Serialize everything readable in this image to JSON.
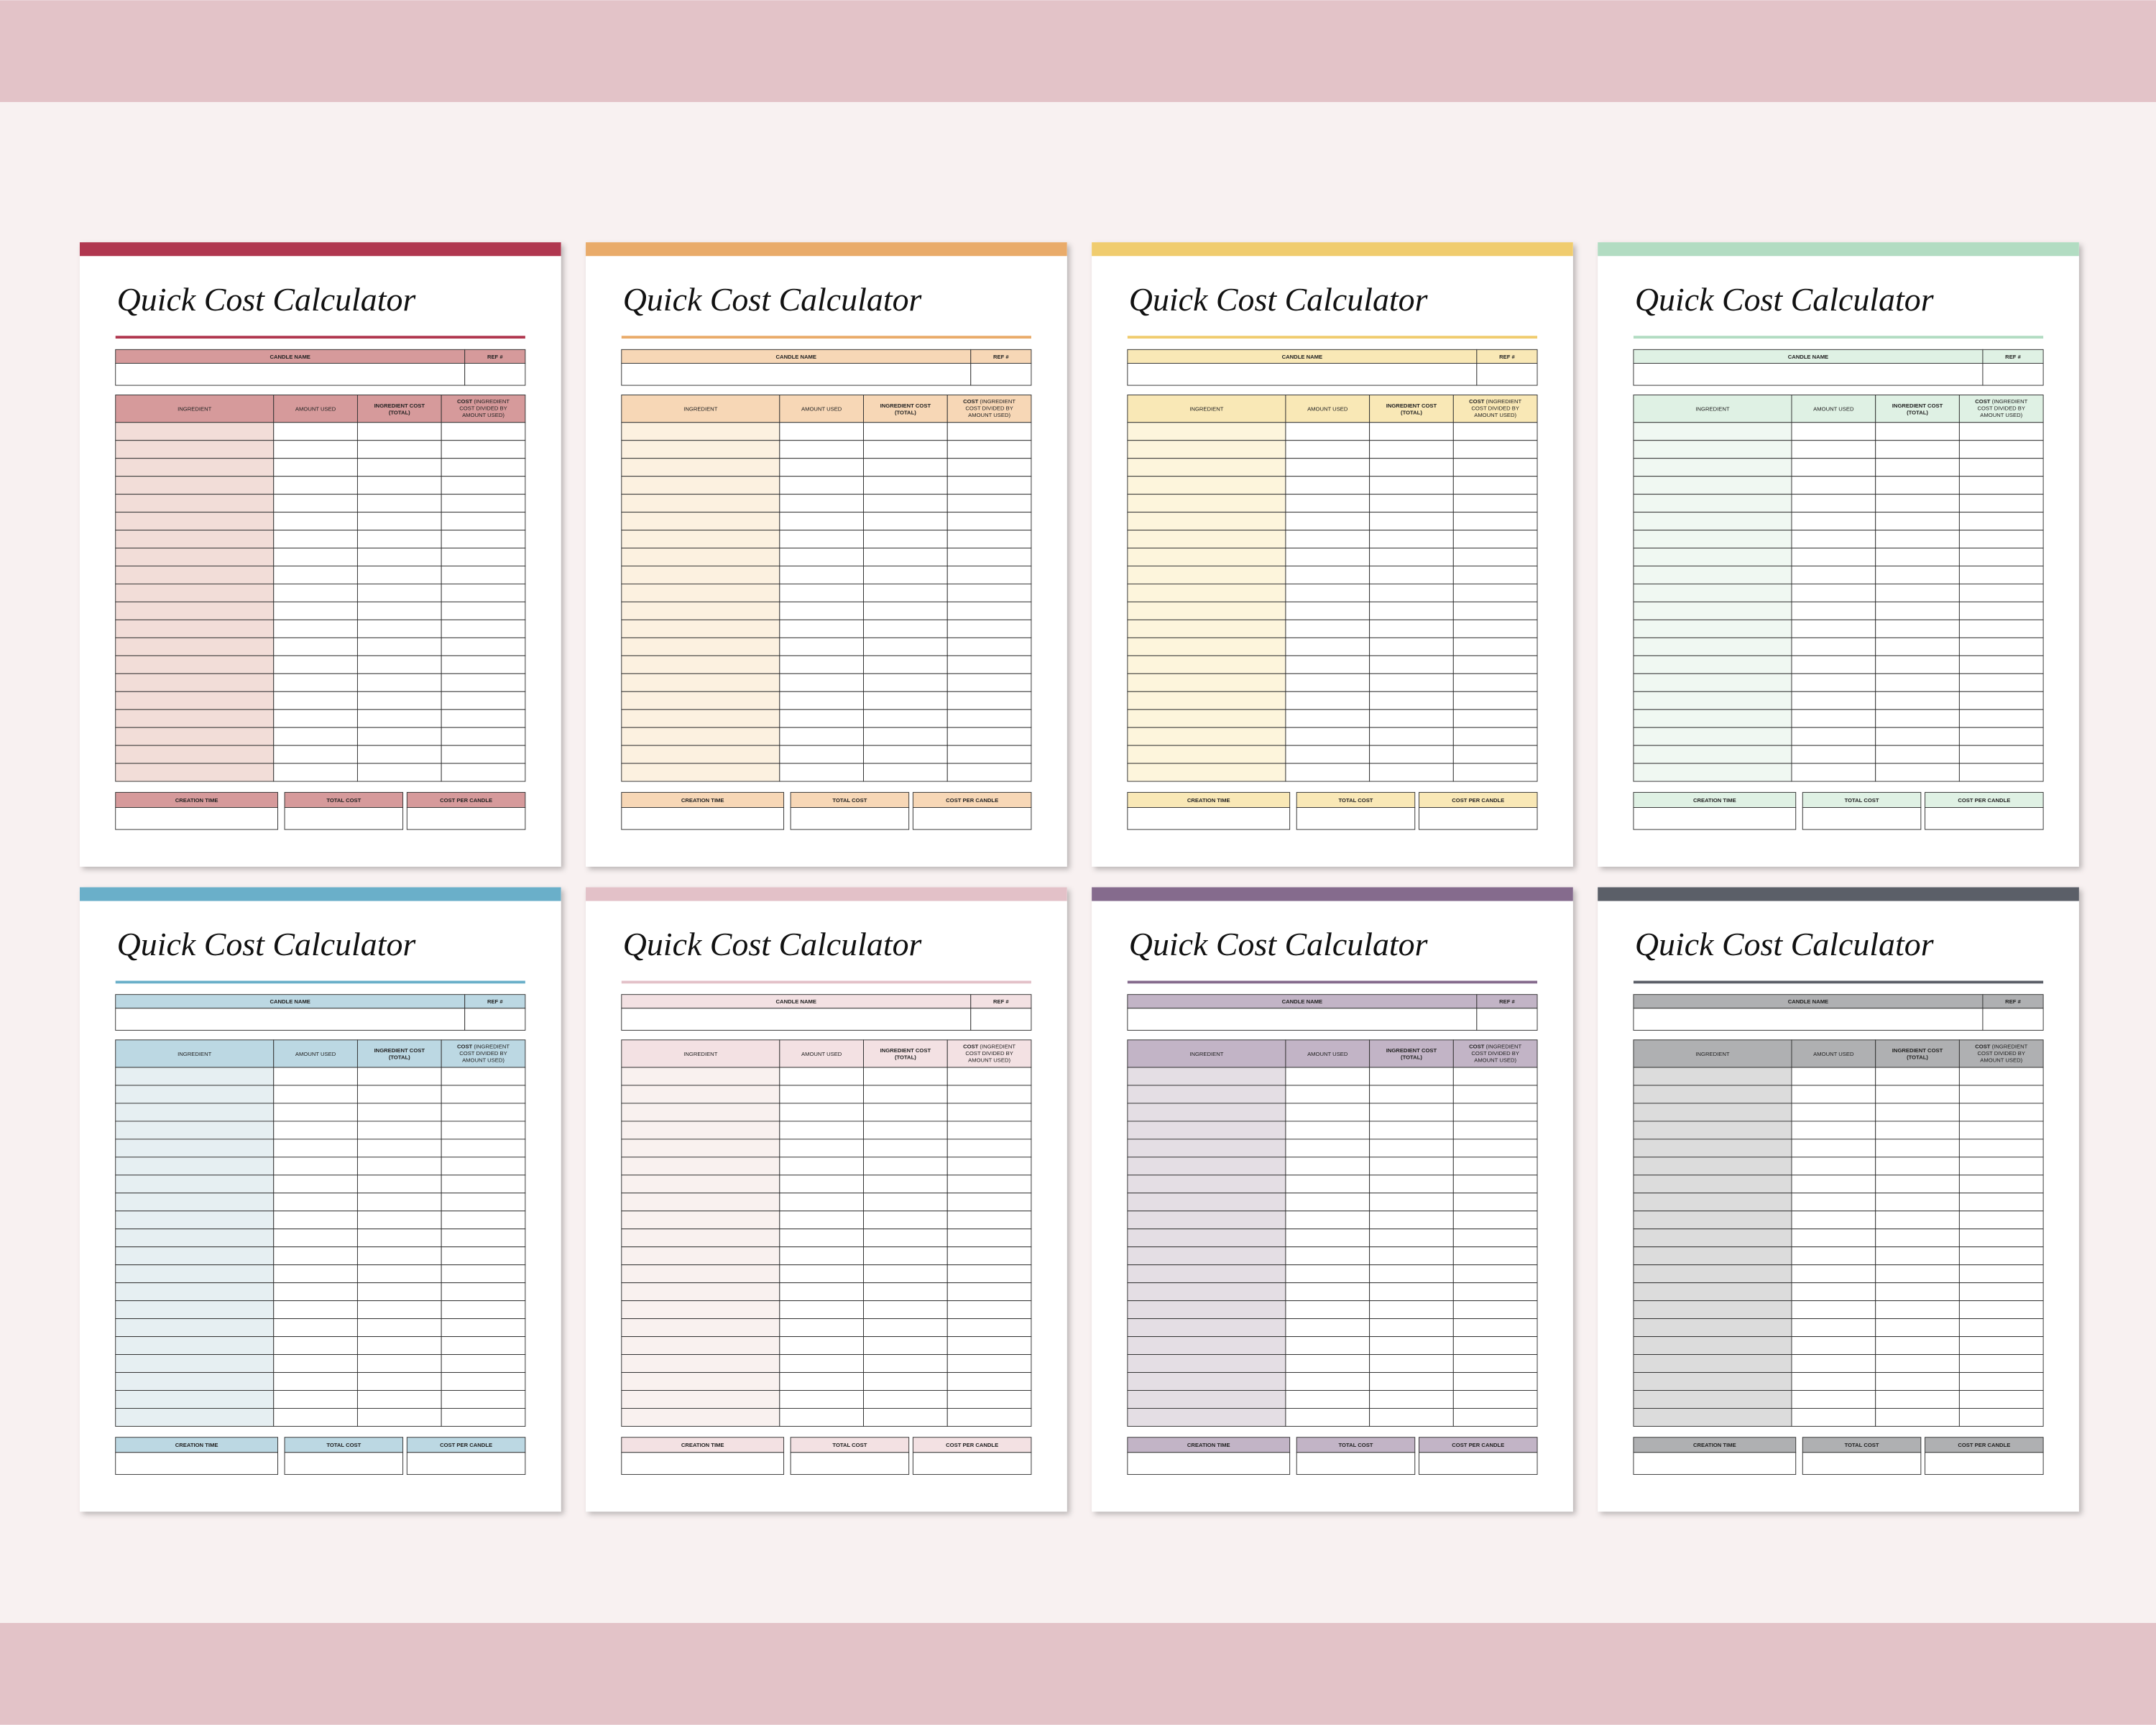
{
  "template": {
    "title": "Quick Cost Calculator",
    "candle_name": "CANDLE NAME",
    "ref": "REF #",
    "ingredient": "INGREDIENT",
    "amount_used": "AMOUNT USED",
    "ingredient_cost": [
      "INGREDIENT COST",
      "(TOTAL)"
    ],
    "cost_label": "COST",
    "cost_note": [
      "(INGREDIENT",
      "COST DIVIDED BY",
      "AMOUNT USED)"
    ],
    "creation_time": "CREATION TIME",
    "total_cost": "TOTAL COST",
    "cost_per_candle": "COST PER CANDLE"
  },
  "sheets": [
    {
      "bar": "#b0374f",
      "header": "#d69a9b",
      "tint": "#f2ddd8"
    },
    {
      "bar": "#e9ab6a",
      "header": "#f7d7b6",
      "tint": "#fcf1e0"
    },
    {
      "bar": "#f0cc6e",
      "header": "#f9e8b6",
      "tint": "#fdf5dc"
    },
    {
      "bar": "#b2dcc2",
      "header": "#dff1e4",
      "tint": "#f0f8f2"
    },
    {
      "bar": "#6aafc9",
      "header": "#bcd8e3",
      "tint": "#e6eff2"
    },
    {
      "bar": "#e3c1c8",
      "header": "#f3e1e3",
      "tint": "#f9f1ef"
    },
    {
      "bar": "#856b8d",
      "header": "#c2b4c6",
      "tint": "#e4dee4"
    },
    {
      "bar": "#5b5f68",
      "header": "#afb0b2",
      "tint": "#dcdcdc"
    }
  ]
}
